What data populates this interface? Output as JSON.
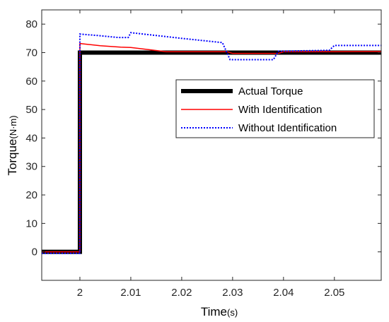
{
  "chart_data": {
    "type": "line",
    "xlabel": "Time",
    "xlabel_unit": "(s)",
    "ylabel": "Torque",
    "ylabel_unit": "(N·m)",
    "xlim": [
      1.9925,
      2.0592
    ],
    "ylim": [
      -10,
      85
    ],
    "xticks": [
      2,
      2.01,
      2.02,
      2.03,
      2.04,
      2.05
    ],
    "xtick_labels": [
      "2",
      "2.01",
      "2.02",
      "2.03",
      "2.04",
      "2.05"
    ],
    "yticks": [
      0,
      10,
      20,
      30,
      40,
      50,
      60,
      70,
      80
    ],
    "ytick_labels": [
      "0",
      "10",
      "20",
      "30",
      "40",
      "50",
      "60",
      "70",
      "80"
    ],
    "grid": false,
    "legend_position": "center-right",
    "series": [
      {
        "name": "Actual Torque",
        "color": "#000000",
        "style": "solid-thick",
        "x": [
          1.9925,
          2.0,
          2.0,
          2.0592
        ],
        "y": [
          0,
          0,
          70,
          70
        ]
      },
      {
        "name": "With Identification",
        "color": "#ff0000",
        "style": "solid",
        "x": [
          1.9925,
          2.0,
          2.0,
          2.004,
          2.008,
          2.01,
          2.017,
          2.029,
          2.03,
          2.039,
          2.04,
          2.05,
          2.0592
        ],
        "y": [
          0,
          0,
          73.2,
          72.4,
          71.9,
          71.8,
          70.3,
          70.3,
          69.7,
          69.7,
          70.3,
          70.3,
          70.4
        ]
      },
      {
        "name": "Without Identification",
        "color": "#0000ff",
        "style": "dotted",
        "x": [
          1.9925,
          2.0,
          2.0,
          2.0035,
          2.0075,
          2.0095,
          2.01,
          2.02,
          2.028,
          2.0295,
          2.03,
          2.038,
          2.039,
          2.04,
          2.049,
          2.05,
          2.0592
        ],
        "y": [
          -0.5,
          -0.5,
          76.5,
          76.0,
          75.3,
          75.3,
          77.0,
          75.0,
          73.5,
          67.5,
          67.5,
          67.5,
          70.5,
          70.5,
          70.8,
          72.5,
          72.5
        ]
      }
    ]
  }
}
